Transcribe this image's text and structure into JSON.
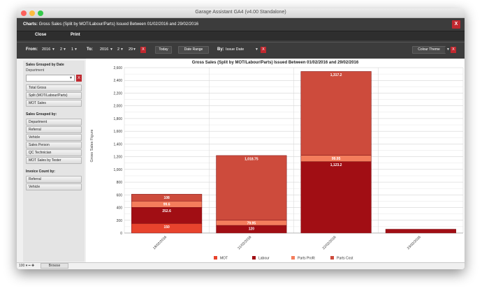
{
  "window": {
    "title": "Garage Assistant GA4 (v4.00 Standalone)"
  },
  "header": {
    "subtitle_bold": "Charts:",
    "subtitle_rest": " Gross Sales (Split by MOT/Labour/Parts)  Issued Between 01/02/2016 and 29/02/2016",
    "close_label": "X"
  },
  "actions": {
    "close": "Close",
    "print": "Print"
  },
  "filters": {
    "from_label": "From:",
    "from_year": "2016",
    "from_month": "2",
    "from_day": "1",
    "to_label": "To:",
    "to_year": "2016",
    "to_month": "2",
    "to_day": "29",
    "clear": "X",
    "today": "Today",
    "date_range": "Date Range",
    "by_label": "By:",
    "by_value": "Issue Date",
    "colour_theme": "Colour Theme",
    "arrow": "▼"
  },
  "sidebar": {
    "sec1": "Sales Grouped by Date",
    "dept_label": "Department",
    "dept_x": "X",
    "sec1_buttons": [
      "Total Gross",
      "Split  (MOT/Labour/Parts)",
      "MOT Sales"
    ],
    "sec2": "Sales Grouped by:",
    "sec2_buttons": [
      "Department",
      "Referral",
      "Vehicle",
      "Sales Person",
      "QC Technician",
      "MOT Sales by Tester"
    ],
    "sec3": "Invoice Count by:",
    "sec3_buttons": [
      "Referral",
      "Vehicle"
    ]
  },
  "statusbar": {
    "zoom": "100",
    "browse": "Browse"
  },
  "colors": {
    "mot": "#e8432d",
    "labour": "#a10e14",
    "parts_profit": "#f47d5c",
    "parts_cost": "#cd4b3c",
    "dark": "#3c3c3c",
    "close_red": "#c0282f"
  },
  "chart_data": {
    "type": "bar",
    "stacked": true,
    "title": "Gross Sales (Split by MOT/Labour/Parts)  Issued Between 01/02/2016 and 29/02/2016",
    "ylabel": "Gross Sales Figure",
    "xlabel": "",
    "ylim": [
      0,
      2600
    ],
    "yticks": [
      0,
      200,
      400,
      600,
      800,
      1000,
      1200,
      1400,
      1600,
      1800,
      2000,
      2200,
      2400,
      2600
    ],
    "ytick_labels": [
      "0",
      "200",
      "400",
      "600",
      "800",
      "1,000",
      "1,200",
      "1,400",
      "1,600",
      "1,800",
      "2,000",
      "2,200",
      "2,400",
      "2,600"
    ],
    "categories": [
      "18/02/2016",
      "21/02/2016",
      "22/02/2016",
      "23/02/2016"
    ],
    "series": [
      {
        "name": "MOT",
        "color": "#e8432d",
        "values": [
          150,
          0,
          0,
          0
        ],
        "labels": [
          "150",
          "",
          "",
          ""
        ]
      },
      {
        "name": "Labour",
        "color": "#a10e14",
        "values": [
          252.6,
          120,
          1123.2,
          60
        ],
        "labels": [
          "252.6",
          "120",
          "1,123.2",
          ""
        ]
      },
      {
        "name": "Parts Profit",
        "color": "#f47d5c",
        "values": [
          99.6,
          79.9,
          99.9,
          0
        ],
        "labels": [
          "99.6",
          "79.95",
          "99.95",
          ""
        ]
      },
      {
        "name": "Parts Cost",
        "color": "#cd4b3c",
        "values": [
          108,
          1018.75,
          1317.2,
          0
        ],
        "labels": [
          "108",
          "1,018.75",
          "1,317.2",
          ""
        ]
      }
    ],
    "legend_position": "bottom",
    "grid": true
  }
}
